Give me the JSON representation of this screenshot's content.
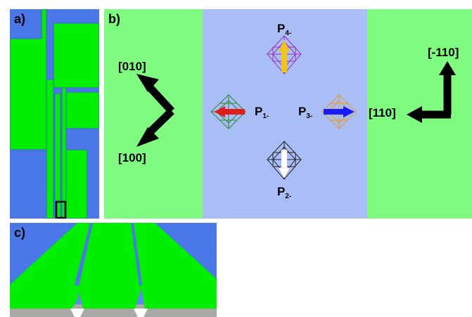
{
  "panel_a": {
    "label": "a)"
  },
  "panel_b": {
    "label": "b)",
    "left_directions": {
      "up": "[010]",
      "down": "[100]"
    },
    "right_directions": {
      "up": "[-110]",
      "left": "[110]"
    },
    "polarizations": [
      {
        "name": "P",
        "sub": "4-",
        "color": "#f0c419",
        "cube_color": "#9b2fb5",
        "direction": "up"
      },
      {
        "name": "P",
        "sub": "1-",
        "color": "#e01e1e",
        "cube_color": "#2e8b2e",
        "direction": "left"
      },
      {
        "name": "P",
        "sub": "3-",
        "color": "#1a1aff",
        "cube_color": "#e89a2a",
        "direction": "right"
      },
      {
        "name": "P",
        "sub": "2-",
        "color": "#ffffff",
        "cube_color": "#222222",
        "direction": "down"
      }
    ]
  },
  "panel_c": {
    "label": "c)"
  },
  "colors": {
    "green": "#00ee00",
    "blue": "#4a78e8",
    "light_green": "#7ffb7f",
    "light_blue": "#a9bdf7",
    "gray": "#a9a9a9"
  }
}
